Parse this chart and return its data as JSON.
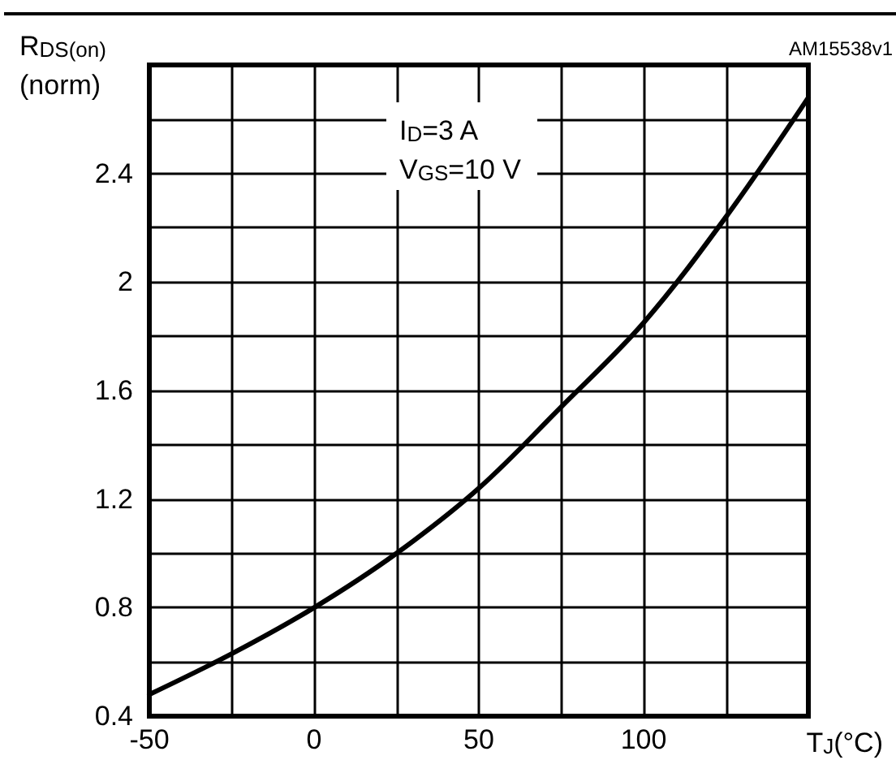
{
  "chart_data": {
    "type": "line",
    "xlabel": "T$_{J}$(°C)",
    "ylabel": "R$_{DS(on)}$\n(norm)",
    "annotations": [
      "I$_{D}$=3 A\nV$_{GS}$=10 V",
      "AM15538v1"
    ],
    "series": [
      {
        "color": "#000000",
        "x": [
          -50,
          -25,
          0,
          25,
          50,
          75,
          100,
          125,
          150
        ],
        "values": [
          0.48,
          0.63,
          0.8,
          1.0,
          1.24,
          1.54,
          1.85,
          2.24,
          2.68
        ]
      }
    ],
    "xlim": [
      -50,
      150
    ],
    "ylim": [
      0.4,
      2.8
    ],
    "xticks": [
      -50,
      {
        "value": -25,
        "label": null
      },
      0,
      {
        "value": 25,
        "label": null
      },
      50,
      {
        "value": 75,
        "label": null
      },
      100,
      {
        "value": 125,
        "label": null
      },
      {
        "value": 150,
        "label": null
      }
    ],
    "yticks": [
      0.4,
      {
        "value": 0.6,
        "label": null
      },
      0.8,
      {
        "value": 1,
        "label": null
      },
      1.2,
      {
        "value": 1.4,
        "label": null
      },
      1.6,
      {
        "value": 1.8,
        "label": null
      },
      2,
      {
        "value": 2.2,
        "label": null
      },
      2.4,
      {
        "value": 2.6,
        "label": null
      },
      {
        "value": 2.8,
        "label": null
      }
    ],
    "grid": true,
    "marker": "none",
    "line_style": "solid"
  }
}
